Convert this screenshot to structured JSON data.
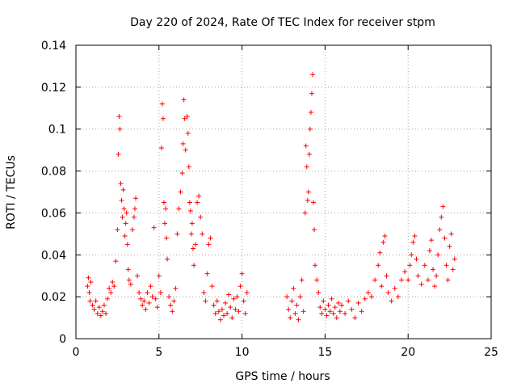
{
  "chart_data": {
    "type": "scatter",
    "title": "Day 220 of 2024, Rate Of TEC Index for receiver stpm",
    "xlabel": "GPS time / hours",
    "ylabel": "ROTI / TECUs",
    "xlim": [
      0,
      25
    ],
    "ylim": [
      0,
      0.14
    ],
    "grid": true,
    "marker": "+",
    "series_color": "#ff0000",
    "x_ticks": [
      0,
      5,
      10,
      15,
      20,
      25
    ],
    "x_tick_labels": [
      "0",
      "5",
      "10",
      "15",
      "20",
      "25"
    ],
    "y_ticks": [
      0,
      0.02,
      0.04,
      0.06,
      0.08,
      0.1,
      0.12,
      0.14
    ],
    "y_tick_labels": [
      "0",
      "0.02",
      "0.04",
      "0.06",
      "0.08",
      "0.1",
      "0.12",
      "0.14"
    ],
    "series": [
      {
        "name": "ROTI",
        "points": [
          [
            0.7,
            0.025
          ],
          [
            0.75,
            0.029
          ],
          [
            0.8,
            0.022
          ],
          [
            0.85,
            0.018
          ],
          [
            0.9,
            0.027
          ],
          [
            1.0,
            0.016
          ],
          [
            1.1,
            0.014
          ],
          [
            1.2,
            0.018
          ],
          [
            1.3,
            0.012
          ],
          [
            1.4,
            0.015
          ],
          [
            1.5,
            0.011
          ],
          [
            1.6,
            0.013
          ],
          [
            1.7,
            0.016
          ],
          [
            1.8,
            0.012
          ],
          [
            1.9,
            0.019
          ],
          [
            2.0,
            0.024
          ],
          [
            2.1,
            0.022
          ],
          [
            2.2,
            0.027
          ],
          [
            2.3,
            0.025
          ],
          [
            2.4,
            0.037
          ],
          [
            2.5,
            0.052
          ],
          [
            2.55,
            0.088
          ],
          [
            2.6,
            0.106
          ],
          [
            2.65,
            0.1
          ],
          [
            2.7,
            0.074
          ],
          [
            2.75,
            0.066
          ],
          [
            2.8,
            0.058
          ],
          [
            2.85,
            0.071
          ],
          [
            2.9,
            0.062
          ],
          [
            2.95,
            0.049
          ],
          [
            3.0,
            0.055
          ],
          [
            3.05,
            0.06
          ],
          [
            3.1,
            0.045
          ],
          [
            3.15,
            0.033
          ],
          [
            3.2,
            0.028
          ],
          [
            3.3,
            0.026
          ],
          [
            3.4,
            0.052
          ],
          [
            3.5,
            0.058
          ],
          [
            3.55,
            0.062
          ],
          [
            3.6,
            0.067
          ],
          [
            3.7,
            0.03
          ],
          [
            3.8,
            0.022
          ],
          [
            3.9,
            0.019
          ],
          [
            4.0,
            0.016
          ],
          [
            4.1,
            0.018
          ],
          [
            4.2,
            0.014
          ],
          [
            4.3,
            0.022
          ],
          [
            4.4,
            0.017
          ],
          [
            4.5,
            0.025
          ],
          [
            4.6,
            0.02
          ],
          [
            4.7,
            0.053
          ],
          [
            4.8,
            0.019
          ],
          [
            4.9,
            0.015
          ],
          [
            5.0,
            0.03
          ],
          [
            5.1,
            0.022
          ],
          [
            5.15,
            0.091
          ],
          [
            5.2,
            0.112
          ],
          [
            5.25,
            0.105
          ],
          [
            5.3,
            0.065
          ],
          [
            5.35,
            0.055
          ],
          [
            5.4,
            0.062
          ],
          [
            5.45,
            0.048
          ],
          [
            5.5,
            0.038
          ],
          [
            5.6,
            0.02
          ],
          [
            5.7,
            0.016
          ],
          [
            5.8,
            0.013
          ],
          [
            5.9,
            0.018
          ],
          [
            6.0,
            0.024
          ],
          [
            6.1,
            0.05
          ],
          [
            6.2,
            0.062
          ],
          [
            6.3,
            0.07
          ],
          [
            6.4,
            0.079
          ],
          [
            6.45,
            0.093
          ],
          [
            6.5,
            0.114
          ],
          [
            6.55,
            0.105
          ],
          [
            6.6,
            0.09
          ],
          [
            6.7,
            0.106
          ],
          [
            6.75,
            0.098
          ],
          [
            6.8,
            0.082
          ],
          [
            6.85,
            0.065
          ],
          [
            6.9,
            0.061
          ],
          [
            6.95,
            0.05
          ],
          [
            7.0,
            0.055
          ],
          [
            7.05,
            0.043
          ],
          [
            7.1,
            0.035
          ],
          [
            7.2,
            0.045
          ],
          [
            7.3,
            0.065
          ],
          [
            7.4,
            0.068
          ],
          [
            7.5,
            0.058
          ],
          [
            7.6,
            0.05
          ],
          [
            7.7,
            0.022
          ],
          [
            7.8,
            0.018
          ],
          [
            7.9,
            0.031
          ],
          [
            8.0,
            0.045
          ],
          [
            8.1,
            0.048
          ],
          [
            8.2,
            0.025
          ],
          [
            8.3,
            0.016
          ],
          [
            8.4,
            0.012
          ],
          [
            8.5,
            0.018
          ],
          [
            8.6,
            0.013
          ],
          [
            8.7,
            0.009
          ],
          [
            8.8,
            0.014
          ],
          [
            8.9,
            0.011
          ],
          [
            9.0,
            0.017
          ],
          [
            9.1,
            0.012
          ],
          [
            9.2,
            0.021
          ],
          [
            9.3,
            0.015
          ],
          [
            9.4,
            0.01
          ],
          [
            9.5,
            0.019
          ],
          [
            9.6,
            0.014
          ],
          [
            9.7,
            0.02
          ],
          [
            9.8,
            0.013
          ],
          [
            9.9,
            0.025
          ],
          [
            10.0,
            0.031
          ],
          [
            10.1,
            0.018
          ],
          [
            10.2,
            0.012
          ],
          [
            10.3,
            0.022
          ],
          [
            12.7,
            0.02
          ],
          [
            12.8,
            0.014
          ],
          [
            12.9,
            0.01
          ],
          [
            13.0,
            0.018
          ],
          [
            13.1,
            0.024
          ],
          [
            13.2,
            0.012
          ],
          [
            13.3,
            0.016
          ],
          [
            13.4,
            0.009
          ],
          [
            13.5,
            0.02
          ],
          [
            13.6,
            0.028
          ],
          [
            13.7,
            0.013
          ],
          [
            13.8,
            0.06
          ],
          [
            13.85,
            0.092
          ],
          [
            13.9,
            0.082
          ],
          [
            13.95,
            0.066
          ],
          [
            14.0,
            0.07
          ],
          [
            14.05,
            0.088
          ],
          [
            14.1,
            0.1
          ],
          [
            14.15,
            0.108
          ],
          [
            14.2,
            0.117
          ],
          [
            14.25,
            0.126
          ],
          [
            14.3,
            0.065
          ],
          [
            14.35,
            0.052
          ],
          [
            14.4,
            0.035
          ],
          [
            14.5,
            0.028
          ],
          [
            14.6,
            0.022
          ],
          [
            14.7,
            0.015
          ],
          [
            14.8,
            0.012
          ],
          [
            14.9,
            0.018
          ],
          [
            15.0,
            0.014
          ],
          [
            15.1,
            0.011
          ],
          [
            15.2,
            0.016
          ],
          [
            15.3,
            0.013
          ],
          [
            15.4,
            0.019
          ],
          [
            15.5,
            0.012
          ],
          [
            15.6,
            0.015
          ],
          [
            15.7,
            0.01
          ],
          [
            15.8,
            0.017
          ],
          [
            15.9,
            0.013
          ],
          [
            16.0,
            0.016
          ],
          [
            16.2,
            0.012
          ],
          [
            16.4,
            0.018
          ],
          [
            16.6,
            0.014
          ],
          [
            16.8,
            0.01
          ],
          [
            17.0,
            0.017
          ],
          [
            17.2,
            0.013
          ],
          [
            17.4,
            0.019
          ],
          [
            17.6,
            0.022
          ],
          [
            17.8,
            0.02
          ],
          [
            18.0,
            0.028
          ],
          [
            18.2,
            0.035
          ],
          [
            18.3,
            0.041
          ],
          [
            18.4,
            0.025
          ],
          [
            18.5,
            0.046
          ],
          [
            18.6,
            0.049
          ],
          [
            18.7,
            0.03
          ],
          [
            18.8,
            0.022
          ],
          [
            19.0,
            0.018
          ],
          [
            19.2,
            0.024
          ],
          [
            19.4,
            0.02
          ],
          [
            19.6,
            0.028
          ],
          [
            19.8,
            0.032
          ],
          [
            20.0,
            0.028
          ],
          [
            20.1,
            0.035
          ],
          [
            20.2,
            0.04
          ],
          [
            20.3,
            0.046
          ],
          [
            20.4,
            0.049
          ],
          [
            20.5,
            0.038
          ],
          [
            20.6,
            0.03
          ],
          [
            20.8,
            0.026
          ],
          [
            21.0,
            0.035
          ],
          [
            21.2,
            0.028
          ],
          [
            21.3,
            0.042
          ],
          [
            21.4,
            0.047
          ],
          [
            21.5,
            0.033
          ],
          [
            21.6,
            0.025
          ],
          [
            21.7,
            0.03
          ],
          [
            21.8,
            0.04
          ],
          [
            21.9,
            0.052
          ],
          [
            22.0,
            0.058
          ],
          [
            22.1,
            0.063
          ],
          [
            22.2,
            0.048
          ],
          [
            22.3,
            0.035
          ],
          [
            22.4,
            0.028
          ],
          [
            22.5,
            0.044
          ],
          [
            22.6,
            0.05
          ],
          [
            22.7,
            0.033
          ],
          [
            22.8,
            0.038
          ]
        ]
      }
    ]
  }
}
